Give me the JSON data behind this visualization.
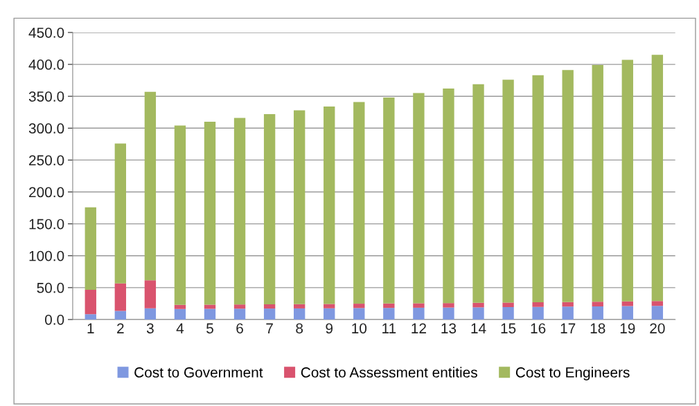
{
  "chart_data": {
    "type": "bar",
    "stacked": true,
    "categories": [
      "1",
      "2",
      "3",
      "4",
      "5",
      "6",
      "7",
      "8",
      "9",
      "10",
      "11",
      "12",
      "13",
      "14",
      "15",
      "16",
      "17",
      "18",
      "19",
      "20"
    ],
    "series": [
      {
        "name": "Cost to Government",
        "color": "#7f98e0",
        "values": [
          8.5,
          13.5,
          17.5,
          16.5,
          16.8,
          17,
          17.2,
          17.4,
          17.6,
          18,
          18.2,
          18.5,
          18.8,
          19.1,
          19.5,
          19.8,
          20.2,
          20.6,
          21,
          21.5
        ]
      },
      {
        "name": "Cost to Assessment entities",
        "color": "#d9536e",
        "values": [
          38,
          43,
          44,
          6.5,
          6.5,
          6.6,
          6.6,
          6.7,
          6.8,
          6.8,
          6.9,
          7,
          7,
          7.1,
          7.1,
          7.2,
          7.2,
          7.3,
          7.3,
          7.5
        ]
      },
      {
        "name": "Cost to Engineers",
        "color": "#a3b95f",
        "values": [
          129.5,
          219.5,
          295.5,
          281,
          286.7,
          292.4,
          298.2,
          303.9,
          309.6,
          316.2,
          322.9,
          329.5,
          336.2,
          342.8,
          349.4,
          356,
          363.6,
          371.1,
          378.7,
          386
        ]
      }
    ],
    "ylim": [
      0,
      450
    ],
    "yticks": [
      {
        "value": 0,
        "label": "0.0"
      },
      {
        "value": 50,
        "label": "50.0"
      },
      {
        "value": 100,
        "label": "100.0"
      },
      {
        "value": 150,
        "label": "150.0"
      },
      {
        "value": 200,
        "label": "200.0"
      },
      {
        "value": 250,
        "label": "250.0"
      },
      {
        "value": 300,
        "label": "300.0"
      },
      {
        "value": 350,
        "label": "350.0"
      },
      {
        "value": 400,
        "label": "400.0"
      },
      {
        "value": 450,
        "label": "450.0"
      }
    ],
    "grid": "y",
    "legend": "bottom"
  }
}
